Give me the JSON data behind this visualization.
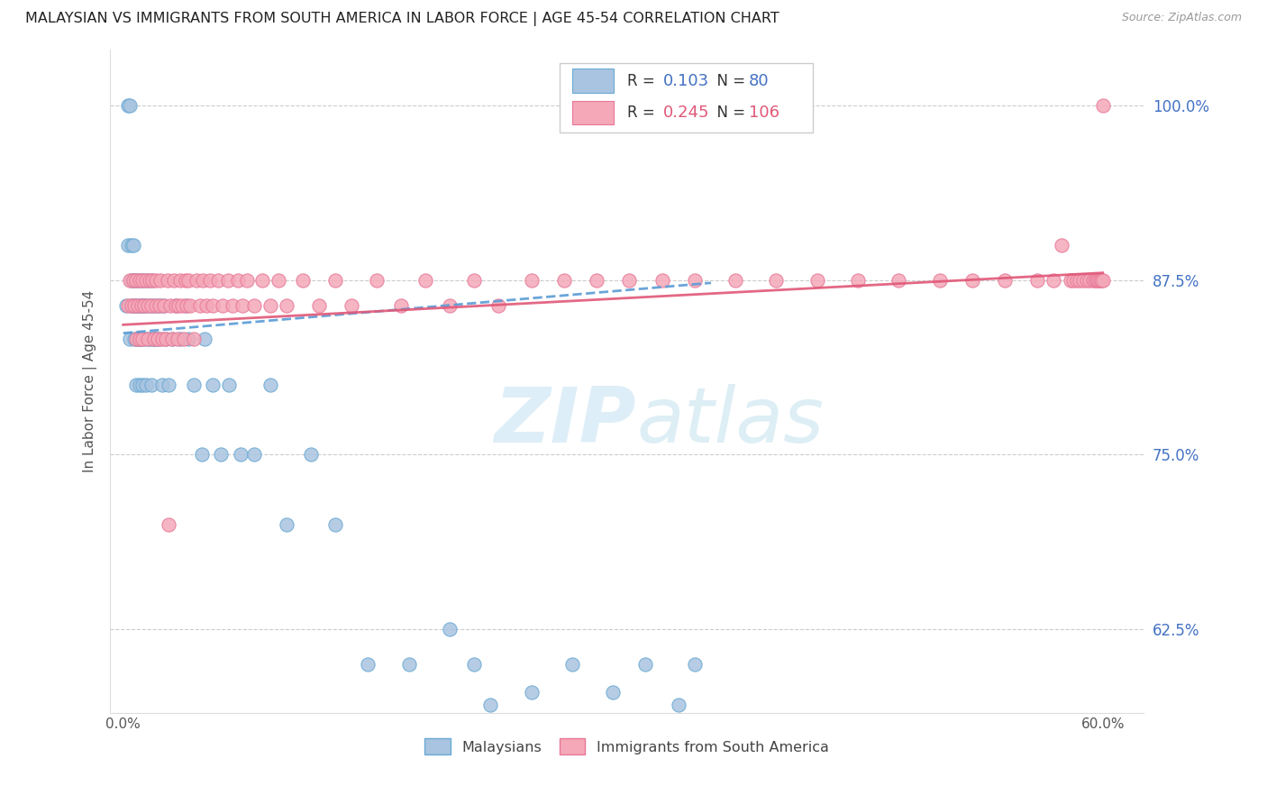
{
  "title": "MALAYSIAN VS IMMIGRANTS FROM SOUTH AMERICA IN LABOR FORCE | AGE 45-54 CORRELATION CHART",
  "source": "Source: ZipAtlas.com",
  "ylabel": "In Labor Force | Age 45-54",
  "blue_color": "#a8c4e0",
  "blue_edge_color": "#6aaad4",
  "pink_color": "#f4a8b8",
  "pink_edge_color": "#e87898",
  "blue_line_color": "#5b9bd5",
  "pink_line_color": "#e05878",
  "R_blue": 0.103,
  "N_blue": 80,
  "R_pink": 0.245,
  "N_pink": 106,
  "legend_labels": [
    "Malaysians",
    "Immigrants from South America"
  ],
  "title_color": "#222222",
  "source_color": "#999999",
  "right_tick_color": "#4472c4",
  "watermark_zip_color": "#deeef8",
  "watermark_atlas_color": "#ddeef5",
  "blue_scatter_x": [
    0.002,
    0.003,
    0.003,
    0.004,
    0.004,
    0.005,
    0.005,
    0.005,
    0.006,
    0.006,
    0.006,
    0.007,
    0.007,
    0.007,
    0.008,
    0.008,
    0.008,
    0.008,
    0.009,
    0.009,
    0.009,
    0.01,
    0.01,
    0.01,
    0.011,
    0.011,
    0.011,
    0.012,
    0.012,
    0.013,
    0.013,
    0.013,
    0.014,
    0.014,
    0.015,
    0.015,
    0.016,
    0.016,
    0.017,
    0.017,
    0.018,
    0.018,
    0.019,
    0.019,
    0.02,
    0.021,
    0.022,
    0.023,
    0.024,
    0.025,
    0.026,
    0.028,
    0.03,
    0.032,
    0.035,
    0.038,
    0.04,
    0.043,
    0.048,
    0.05,
    0.055,
    0.06,
    0.065,
    0.072,
    0.08,
    0.09,
    0.1,
    0.115,
    0.13,
    0.15,
    0.175,
    0.2,
    0.215,
    0.225,
    0.25,
    0.275,
    0.3,
    0.32,
    0.34,
    0.35
  ],
  "blue_scatter_y": [
    0.857,
    0.9,
    1.0,
    0.833,
    1.0,
    0.857,
    0.875,
    0.9,
    0.857,
    0.875,
    0.9,
    0.833,
    0.857,
    0.875,
    0.8,
    0.833,
    0.857,
    0.875,
    0.833,
    0.857,
    0.875,
    0.8,
    0.833,
    0.857,
    0.833,
    0.857,
    0.875,
    0.8,
    0.857,
    0.833,
    0.857,
    0.875,
    0.8,
    0.857,
    0.833,
    0.875,
    0.833,
    0.857,
    0.8,
    0.857,
    0.833,
    0.875,
    0.833,
    0.857,
    0.833,
    0.857,
    0.833,
    0.857,
    0.8,
    0.857,
    0.833,
    0.8,
    0.833,
    0.857,
    0.833,
    0.857,
    0.833,
    0.8,
    0.75,
    0.833,
    0.8,
    0.75,
    0.8,
    0.75,
    0.75,
    0.8,
    0.7,
    0.75,
    0.7,
    0.6,
    0.6,
    0.625,
    0.6,
    0.571,
    0.58,
    0.6,
    0.58,
    0.6,
    0.571,
    0.6
  ],
  "pink_scatter_x": [
    0.003,
    0.004,
    0.005,
    0.006,
    0.007,
    0.008,
    0.008,
    0.009,
    0.01,
    0.01,
    0.011,
    0.012,
    0.012,
    0.013,
    0.014,
    0.015,
    0.015,
    0.016,
    0.017,
    0.018,
    0.019,
    0.02,
    0.02,
    0.021,
    0.022,
    0.023,
    0.024,
    0.025,
    0.026,
    0.027,
    0.028,
    0.029,
    0.03,
    0.031,
    0.032,
    0.033,
    0.034,
    0.035,
    0.036,
    0.037,
    0.038,
    0.039,
    0.04,
    0.041,
    0.043,
    0.045,
    0.047,
    0.049,
    0.051,
    0.053,
    0.055,
    0.058,
    0.061,
    0.064,
    0.067,
    0.07,
    0.073,
    0.076,
    0.08,
    0.085,
    0.09,
    0.095,
    0.1,
    0.11,
    0.12,
    0.13,
    0.14,
    0.155,
    0.17,
    0.185,
    0.2,
    0.215,
    0.23,
    0.25,
    0.27,
    0.29,
    0.31,
    0.33,
    0.35,
    0.375,
    0.4,
    0.425,
    0.45,
    0.475,
    0.5,
    0.52,
    0.54,
    0.56,
    0.57,
    0.575,
    0.58,
    0.582,
    0.584,
    0.586,
    0.588,
    0.59,
    0.592,
    0.594,
    0.595,
    0.596,
    0.597,
    0.598,
    0.599,
    0.599,
    0.6,
    0.6
  ],
  "pink_scatter_y": [
    0.857,
    0.875,
    0.857,
    0.875,
    0.857,
    0.833,
    0.875,
    0.857,
    0.833,
    0.875,
    0.857,
    0.833,
    0.875,
    0.857,
    0.875,
    0.833,
    0.857,
    0.875,
    0.857,
    0.875,
    0.833,
    0.857,
    0.875,
    0.833,
    0.857,
    0.875,
    0.833,
    0.857,
    0.833,
    0.875,
    0.7,
    0.857,
    0.833,
    0.875,
    0.857,
    0.833,
    0.857,
    0.875,
    0.857,
    0.833,
    0.875,
    0.857,
    0.875,
    0.857,
    0.833,
    0.875,
    0.857,
    0.875,
    0.857,
    0.875,
    0.857,
    0.875,
    0.857,
    0.875,
    0.857,
    0.875,
    0.857,
    0.875,
    0.857,
    0.875,
    0.857,
    0.875,
    0.857,
    0.875,
    0.857,
    0.875,
    0.857,
    0.875,
    0.857,
    0.875,
    0.857,
    0.875,
    0.857,
    0.875,
    0.875,
    0.875,
    0.875,
    0.875,
    0.875,
    0.875,
    0.875,
    0.875,
    0.875,
    0.875,
    0.875,
    0.875,
    0.875,
    0.875,
    0.875,
    0.9,
    0.875,
    0.875,
    0.875,
    0.875,
    0.875,
    0.875,
    0.875,
    0.875,
    0.875,
    0.875,
    0.875,
    0.875,
    0.875,
    0.875,
    0.875,
    1.0
  ]
}
